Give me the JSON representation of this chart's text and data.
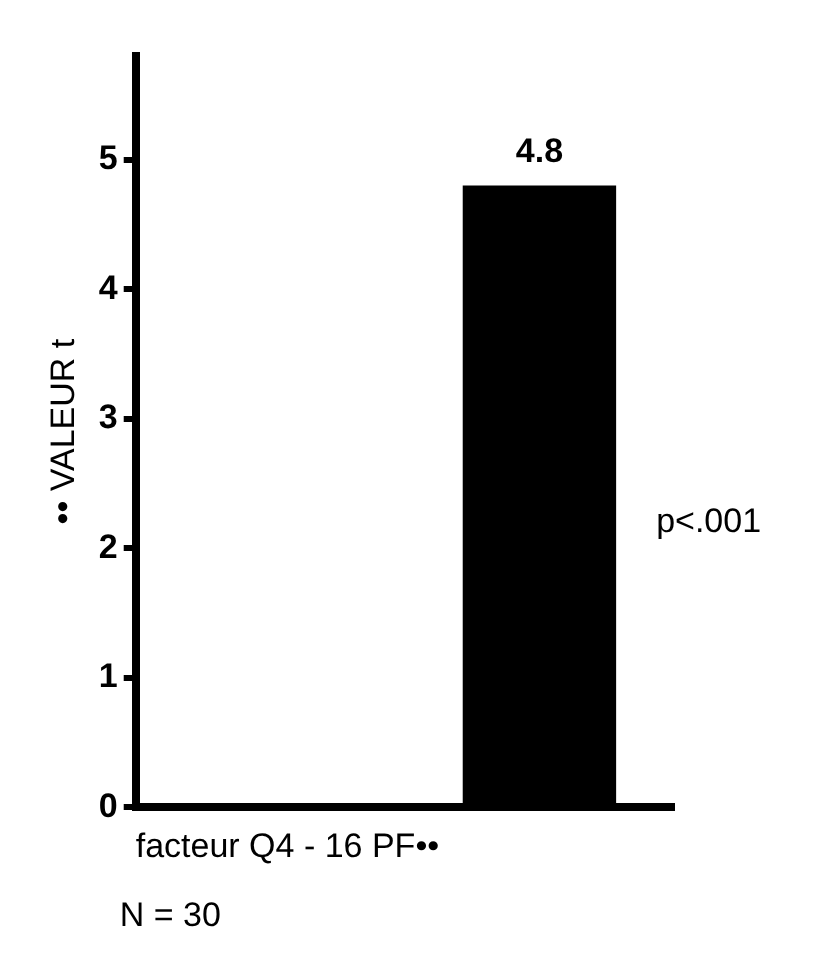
{
  "chart_data": {
    "type": "bar",
    "categories": [
      null,
      null
    ],
    "values": [
      null,
      4.8
    ],
    "color": "#000000",
    "ylim": [
      0,
      5.8
    ],
    "yticks": [
      0,
      1,
      2,
      3,
      4,
      5
    ],
    "grid": false,
    "legend": false,
    "data_labels": true,
    "ylabel": "•• VALEUR t",
    "xlabel": "facteur Q4 - 16 PF••",
    "annotations": [
      "p<.001",
      "N = 30"
    ]
  }
}
